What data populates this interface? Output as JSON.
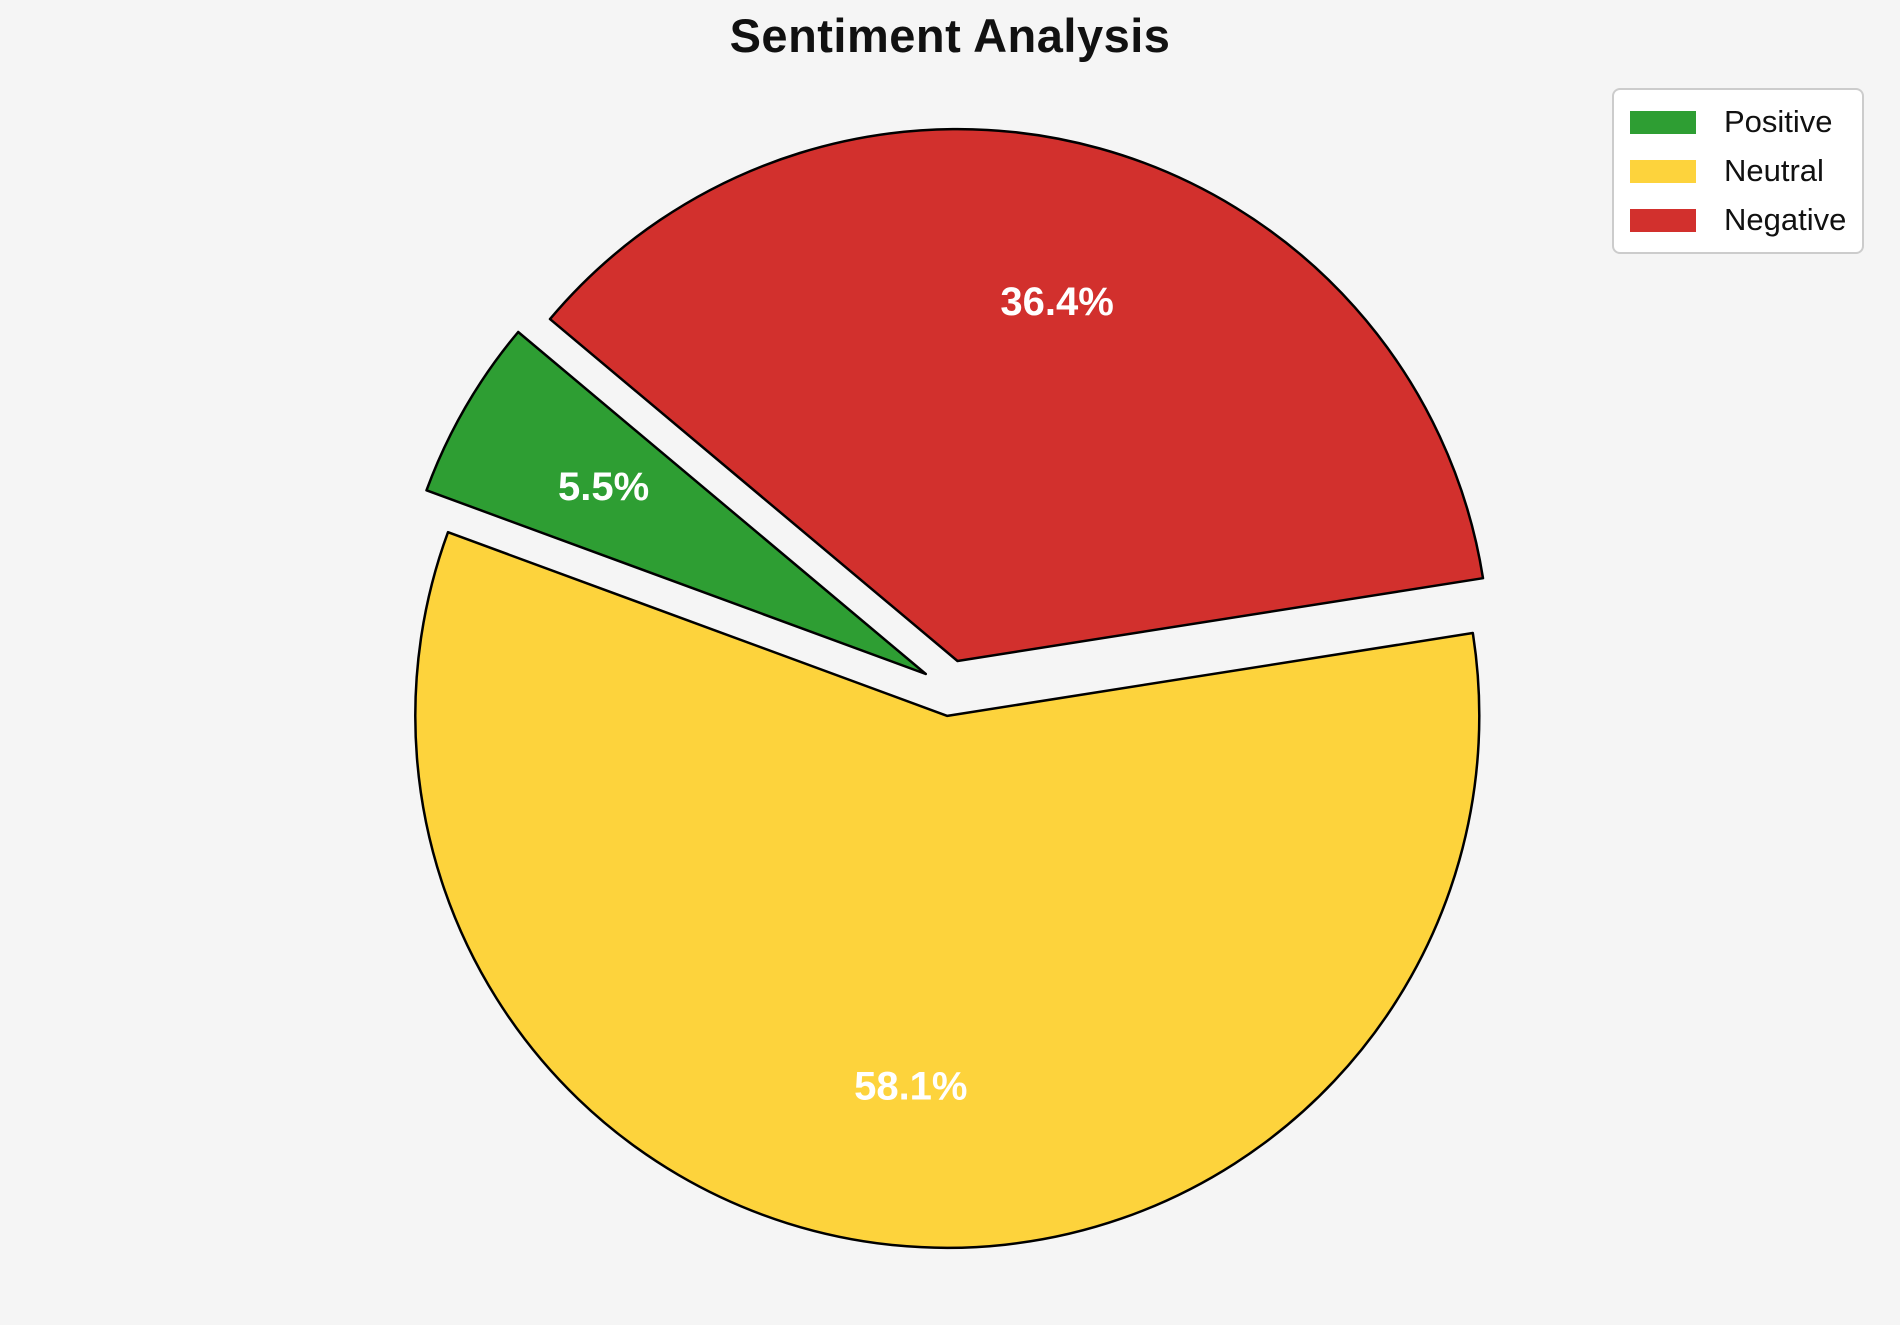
{
  "chart_data": {
    "type": "pie",
    "title": "Sentiment Analysis",
    "slices": [
      {
        "label": "Positive",
        "value": 5.5,
        "pct_label": "5.5%",
        "color": "#2e9e33"
      },
      {
        "label": "Neutral",
        "value": 58.1,
        "pct_label": "58.1%",
        "color": "#fdd33c"
      },
      {
        "label": "Negative",
        "value": 36.4,
        "pct_label": "36.4%",
        "color": "#d2302d"
      }
    ],
    "start_angle": 140,
    "direction": "counterclockwise",
    "explode_all": true,
    "edge_color": "#000000",
    "label_color": "#ffffff",
    "background": "#f5f5f5",
    "legend_position": "upper right",
    "legend_entries": [
      "Positive",
      "Neutral",
      "Negative"
    ]
  }
}
